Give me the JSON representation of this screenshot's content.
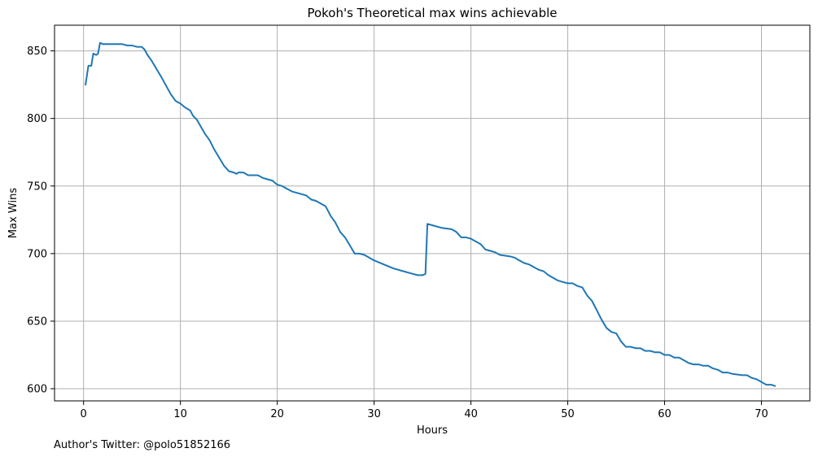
{
  "chart_data": {
    "type": "line",
    "title": "Pokoh's Theoretical max wins achievable",
    "xlabel": "Hours",
    "ylabel": "Max Wins",
    "xlim": [
      -3,
      75
    ],
    "ylim": [
      591,
      869
    ],
    "x_ticks": [
      0,
      10,
      20,
      30,
      40,
      50,
      60,
      70
    ],
    "y_ticks": [
      600,
      650,
      700,
      750,
      800,
      850
    ],
    "grid": true,
    "line_color": "#1f77b4",
    "series": [
      {
        "points": [
          [
            0.2,
            825
          ],
          [
            0.5,
            839
          ],
          [
            0.8,
            839
          ],
          [
            1.0,
            848
          ],
          [
            1.3,
            847
          ],
          [
            1.5,
            848
          ],
          [
            1.7,
            856
          ],
          [
            2.0,
            855
          ],
          [
            3.0,
            855
          ],
          [
            4.0,
            855
          ],
          [
            4.5,
            854
          ],
          [
            5.0,
            854
          ],
          [
            5.5,
            853
          ],
          [
            6.0,
            853
          ],
          [
            6.3,
            851
          ],
          [
            6.6,
            847
          ],
          [
            7.0,
            843
          ],
          [
            8.0,
            831
          ],
          [
            9.0,
            818
          ],
          [
            9.5,
            813
          ],
          [
            10.0,
            811
          ],
          [
            10.5,
            808
          ],
          [
            11.0,
            806
          ],
          [
            11.3,
            802
          ],
          [
            11.7,
            799
          ],
          [
            12.5,
            789
          ],
          [
            13.0,
            784
          ],
          [
            13.5,
            777
          ],
          [
            14.0,
            771
          ],
          [
            14.5,
            765
          ],
          [
            15.0,
            761
          ],
          [
            15.5,
            760
          ],
          [
            15.8,
            759
          ],
          [
            16.0,
            760
          ],
          [
            16.5,
            760
          ],
          [
            17.0,
            758
          ],
          [
            17.5,
            758
          ],
          [
            18.0,
            758
          ],
          [
            18.5,
            756
          ],
          [
            19.0,
            755
          ],
          [
            19.5,
            754
          ],
          [
            20.0,
            751
          ],
          [
            20.5,
            750
          ],
          [
            21.0,
            748
          ],
          [
            21.5,
            746
          ],
          [
            22.0,
            745
          ],
          [
            22.5,
            744
          ],
          [
            23.0,
            743
          ],
          [
            23.5,
            740
          ],
          [
            24.0,
            739
          ],
          [
            24.5,
            737
          ],
          [
            25.0,
            735
          ],
          [
            25.5,
            728
          ],
          [
            26.0,
            723
          ],
          [
            26.5,
            716
          ],
          [
            27.0,
            712
          ],
          [
            27.5,
            706
          ],
          [
            28.0,
            700
          ],
          [
            28.5,
            700
          ],
          [
            29.0,
            699
          ],
          [
            30.0,
            695
          ],
          [
            31.0,
            692
          ],
          [
            32.0,
            689
          ],
          [
            33.0,
            687
          ],
          [
            34.0,
            685
          ],
          [
            34.5,
            684
          ],
          [
            35.0,
            684
          ],
          [
            35.3,
            685
          ],
          [
            35.5,
            722
          ],
          [
            36.0,
            721
          ],
          [
            37.0,
            719
          ],
          [
            38.0,
            718
          ],
          [
            38.5,
            716
          ],
          [
            39.0,
            712
          ],
          [
            39.5,
            712
          ],
          [
            40.0,
            711
          ],
          [
            41.0,
            707
          ],
          [
            41.5,
            703
          ],
          [
            42.0,
            702
          ],
          [
            42.5,
            701
          ],
          [
            43.0,
            699
          ],
          [
            44.0,
            698
          ],
          [
            44.5,
            697
          ],
          [
            45.0,
            695
          ],
          [
            45.5,
            693
          ],
          [
            46.0,
            692
          ],
          [
            46.5,
            690
          ],
          [
            47.0,
            688
          ],
          [
            47.5,
            687
          ],
          [
            48.0,
            684
          ],
          [
            48.5,
            682
          ],
          [
            49.0,
            680
          ],
          [
            49.5,
            679
          ],
          [
            50.0,
            678
          ],
          [
            50.5,
            678
          ],
          [
            51.0,
            676
          ],
          [
            51.5,
            675
          ],
          [
            52.0,
            669
          ],
          [
            52.5,
            665
          ],
          [
            53.0,
            658
          ],
          [
            53.5,
            651
          ],
          [
            54.0,
            645
          ],
          [
            54.5,
            642
          ],
          [
            55.0,
            641
          ],
          [
            55.5,
            635
          ],
          [
            56.0,
            631
          ],
          [
            56.5,
            631
          ],
          [
            57.0,
            630
          ],
          [
            57.5,
            630
          ],
          [
            58.0,
            628
          ],
          [
            58.5,
            628
          ],
          [
            59.0,
            627
          ],
          [
            59.5,
            627
          ],
          [
            60.0,
            625
          ],
          [
            60.5,
            625
          ],
          [
            61.0,
            623
          ],
          [
            61.5,
            623
          ],
          [
            62.0,
            621
          ],
          [
            62.5,
            619
          ],
          [
            63.0,
            618
          ],
          [
            63.5,
            618
          ],
          [
            64.0,
            617
          ],
          [
            64.5,
            617
          ],
          [
            65.0,
            615
          ],
          [
            65.5,
            614
          ],
          [
            66.0,
            612
          ],
          [
            66.5,
            612
          ],
          [
            67.0,
            611
          ],
          [
            68.0,
            610
          ],
          [
            68.5,
            610
          ],
          [
            69.0,
            608
          ],
          [
            69.5,
            607
          ],
          [
            70.0,
            605
          ],
          [
            70.5,
            603
          ],
          [
            71.0,
            603
          ],
          [
            71.4,
            602
          ]
        ]
      }
    ]
  },
  "footer": {
    "author": "Author's Twitter: @polo51852166"
  }
}
